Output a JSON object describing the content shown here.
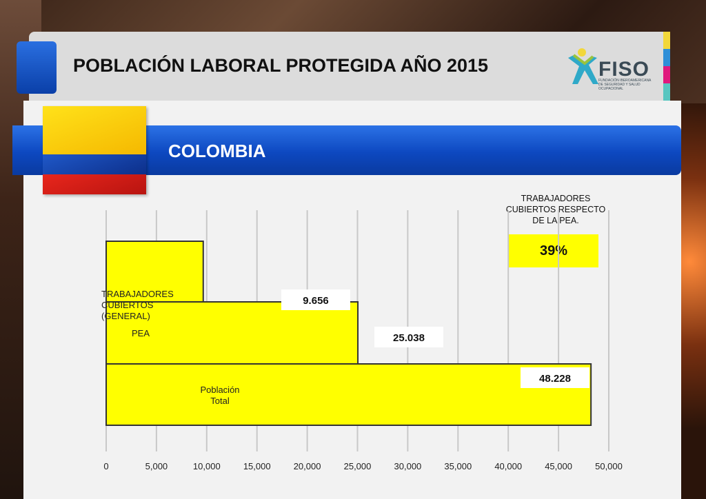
{
  "header": {
    "title": "POBLACIÓN LABORAL PROTEGIDA AÑO 2015",
    "logo": {
      "name": "FISO",
      "subtitle": "FUNDACIÓN IBEROAMERICANA DE SEGURIDAD Y SALUD OCUPACIONAL",
      "icon": "fiso-logo-icon"
    },
    "strip_colors": [
      "#f2d73a",
      "#2f8fd8",
      "#e0197d",
      "#58c6c0"
    ]
  },
  "country": {
    "name": "COLOMBIA",
    "flag_icon": "colombia-flag"
  },
  "note": {
    "text": "TRABAJADORES CUBIERTOS RESPECTO DE LA PEA.",
    "value": "39%"
  },
  "chart_data": {
    "type": "bar",
    "orientation": "horizontal",
    "categories": [
      "TRABAJADORES CUBIERTOS (GENERAL)",
      "PEA",
      "Población Total"
    ],
    "values": [
      9656,
      25038,
      48228
    ],
    "data_labels": [
      "9.656",
      "25.038",
      "48.228"
    ],
    "xlim": [
      0,
      50000
    ],
    "xticks": [
      "0",
      "5,000",
      "10,000",
      "15,000",
      "20,000",
      "25,000",
      "30,000",
      "35,000",
      "40,000",
      "45,000",
      "50,000"
    ],
    "grid": true,
    "bar_color": "#ffff00",
    "bar_border": "#333333"
  }
}
